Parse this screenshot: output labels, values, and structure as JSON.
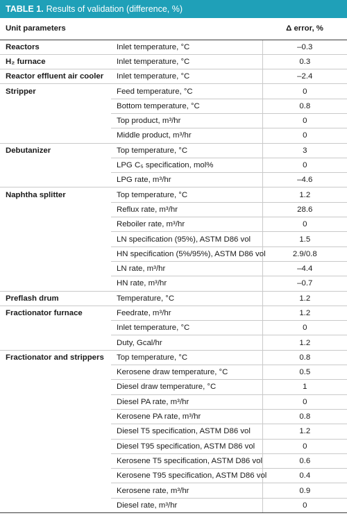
{
  "title": {
    "lead": "TABLE 1.",
    "text": "Results of validation (difference, %)"
  },
  "headers": {
    "unit": "Unit parameters",
    "error": "Δ error, %"
  },
  "groups": [
    {
      "unit": "Reactors",
      "rows": [
        {
          "param": "Inlet temperature, °C",
          "error": "–0.3"
        }
      ]
    },
    {
      "unit": "H₂ furnace",
      "rows": [
        {
          "param": "Inlet temperature, °C",
          "error": "0.3"
        }
      ]
    },
    {
      "unit": "Reactor effluent air cooler",
      "rows": [
        {
          "param": "Inlet temperature, °C",
          "error": "–2.4"
        }
      ]
    },
    {
      "unit": "Stripper",
      "rows": [
        {
          "param": "Feed temperature, °C",
          "error": "0"
        },
        {
          "param": "Bottom temperature, °C",
          "error": "0.8"
        },
        {
          "param": "Top product, m³/hr",
          "error": "0"
        },
        {
          "param": "Middle product, m³/hr",
          "error": "0"
        }
      ]
    },
    {
      "unit": "Debutanizer",
      "rows": [
        {
          "param": "Top temperature, °C",
          "error": "3"
        },
        {
          "param": "LPG C₅ specification, mol%",
          "error": "0"
        },
        {
          "param": "LPG rate, m³/hr",
          "error": "–4.6"
        }
      ]
    },
    {
      "unit": "Naphtha splitter",
      "rows": [
        {
          "param": "Top temperature, °C",
          "error": "1.2"
        },
        {
          "param": "Reflux rate, m³/hr",
          "error": "28.6"
        },
        {
          "param": "Reboiler rate, m³/hr",
          "error": "0"
        },
        {
          "param": "LN specification (95%), ASTM D86 vol",
          "error": "1.5"
        },
        {
          "param": "HN specification (5%/95%), ASTM D86 vol",
          "error": "2.9/0.8"
        },
        {
          "param": "LN rate, m³/hr",
          "error": "–4.4"
        },
        {
          "param": "HN rate, m³/hr",
          "error": "–0.7"
        }
      ]
    },
    {
      "unit": "Preflash drum",
      "rows": [
        {
          "param": "Temperature, °C",
          "error": "1.2"
        }
      ]
    },
    {
      "unit": "Fractionator furnace",
      "rows": [
        {
          "param": "Feedrate, m³/hr",
          "error": "1.2"
        },
        {
          "param": "Inlet temperature, °C",
          "error": "0"
        },
        {
          "param": "Duty, Gcal/hr",
          "error": "1.2"
        }
      ]
    },
    {
      "unit": "Fractionator and strippers",
      "rows": [
        {
          "param": "Top temperature, °C",
          "error": "0.8"
        },
        {
          "param": "Kerosene draw temperature, °C",
          "error": "0.5"
        },
        {
          "param": "Diesel draw temperature, °C",
          "error": "1"
        },
        {
          "param": "Diesel PA rate, m³/hr",
          "error": "0"
        },
        {
          "param": "Kerosene PA rate, m³/hr",
          "error": "0.8"
        },
        {
          "param": "Diesel T5 specification, ASTM D86 vol",
          "error": "1.2"
        },
        {
          "param": "Diesel T95 specification, ASTM D86 vol",
          "error": "0"
        },
        {
          "param": "Kerosene T5 specification, ASTM D86 vol",
          "error": "0.6"
        },
        {
          "param": "Kerosene T95 specification, ASTM D86 vol",
          "error": "0.4"
        },
        {
          "param": "Kerosene rate, m³/hr",
          "error": "0.9"
        },
        {
          "param": "Diesel rate, m³/hr",
          "error": "0"
        }
      ]
    }
  ],
  "colors": {
    "title_bg": "#1fa0b8",
    "rule": "#c9c9c9"
  }
}
